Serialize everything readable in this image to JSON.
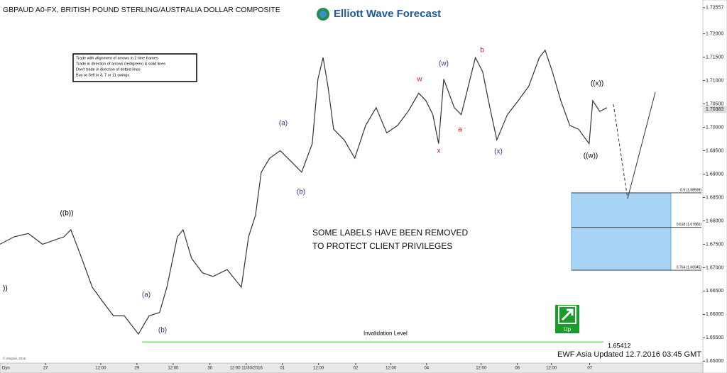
{
  "chart_data": {
    "type": "line",
    "title": "GBPAUD A0-FX, BRITISH POUND STERLING/AUSTRALIA DOLLAR COMPOSITE",
    "logo": "Elliott Wave Forecast",
    "rules": [
      "Trade with alignment of arrows in 2 time frames",
      "Trade in direction of arrows (red/green) & solid lines",
      "Don't trade in direction of dotted lines",
      "Buy or Sell in 3, 7 or 11 swings"
    ],
    "notice": [
      "SOME LABELS HAVE BEEN REMOVED",
      "TO PROTECT CLIENT PRIVILEGES"
    ],
    "footer": "EWF Asia Updated 12.7.2016 03:45 GMT",
    "copyright": "© eSignal, 2016",
    "interval_label": "Dyn",
    "signal": "Up",
    "invalidation": {
      "label": "Invalidation Level",
      "value": 1.65412,
      "color": "#33cc33"
    },
    "fib_levels": [
      {
        "label": "0.5 (1.68599)",
        "value": 1.68599
      },
      {
        "label": "0.618 (1.67860)",
        "value": 1.6786
      },
      {
        "label": "0.764 (1.66945)",
        "value": 1.66945
      }
    ],
    "last_price": {
      "value": 1.70383,
      "label": "1.70383"
    },
    "top_price": {
      "value": 1.72557,
      "label": "1.72557"
    },
    "wave_labels": [
      {
        "text": "))",
        "color": "#000000"
      },
      {
        "text": "((b))",
        "color": "#000000"
      },
      {
        "text": "(a)",
        "color": "#333399"
      },
      {
        "text": "(b)",
        "color": "#333399"
      },
      {
        "text": "(a)",
        "color": "#333399"
      },
      {
        "text": "(b)",
        "color": "#333399"
      },
      {
        "text": "w",
        "color": "#cc2222"
      },
      {
        "text": "x",
        "color": "#cc2222"
      },
      {
        "text": "(w)",
        "color": "#333399"
      },
      {
        "text": "a",
        "color": "#cc2222"
      },
      {
        "text": "b",
        "color": "#cc2222"
      },
      {
        "text": "(x)",
        "color": "#333399"
      },
      {
        "text": "((x))",
        "color": "#000000"
      },
      {
        "text": "((w))",
        "color": "#000000"
      }
    ],
    "xlim": [
      0,
      233
    ],
    "ylim": [
      1.6499,
      1.7257
    ],
    "xticks": [
      {
        "value": 15.1,
        "label": "27"
      },
      {
        "value": 33.4,
        "label": "12:00"
      },
      {
        "value": 45.4,
        "label": "29"
      },
      {
        "value": 57.4,
        "label": "12:00"
      },
      {
        "value": 69.6,
        "label": "30"
      },
      {
        "value": 81.6,
        "label": "12:00 11/30/2016"
      },
      {
        "value": 93.6,
        "label": "01"
      },
      {
        "value": 105.6,
        "label": "12:00"
      },
      {
        "value": 117.9,
        "label": "02"
      },
      {
        "value": 129.6,
        "label": "12:00"
      },
      {
        "value": 141.4,
        "label": "04"
      },
      {
        "value": 159.5,
        "label": "12:00"
      },
      {
        "value": 171.5,
        "label": "06"
      },
      {
        "value": 182.8,
        "label": "12:00"
      },
      {
        "value": 195.5,
        "label": "07"
      }
    ],
    "yticks": [
      {
        "value": 1.65,
        "label": "1.65000"
      },
      {
        "value": 1.655,
        "label": "1.65500"
      },
      {
        "value": 1.66,
        "label": "1.66000"
      },
      {
        "value": 1.665,
        "label": "1.66500"
      },
      {
        "value": 1.67,
        "label": "1.67000"
      },
      {
        "value": 1.675,
        "label": "1.67500"
      },
      {
        "value": 1.68,
        "label": "1.68000"
      },
      {
        "value": 1.685,
        "label": "1.68500"
      },
      {
        "value": 1.69,
        "label": "1.69000"
      },
      {
        "value": 1.695,
        "label": "1.69500"
      },
      {
        "value": 1.7,
        "label": "1.70000"
      },
      {
        "value": 1.705,
        "label": "1.70500"
      },
      {
        "value": 1.71,
        "label": "1.71000"
      },
      {
        "value": 1.715,
        "label": "1.71500"
      },
      {
        "value": 1.72,
        "label": "1.72000"
      }
    ],
    "x": [
      0,
      4.7,
      9.4,
      14.1,
      21.2,
      23.5,
      27.1,
      30.6,
      34.1,
      37.6,
      41.2,
      45.9,
      49.4,
      52.9,
      55.3,
      58.8,
      60.7,
      63.5,
      67.1,
      70.6,
      75.3,
      80,
      82.4,
      84.7,
      86.6,
      89.4,
      92.9,
      96.5,
      100,
      103.5,
      105.4,
      107.1,
      108.7,
      110.6,
      114.1,
      117.6,
      121.2,
      124.7,
      128.2,
      131.8,
      135.3,
      138.8,
      141.2,
      143.5,
      145.4,
      147.1,
      150.6,
      152.9,
      157.6,
      160,
      162.4,
      164.7,
      168.2,
      171.8,
      175.3,
      178.8,
      180.7,
      183.1,
      185.9,
      188.9,
      191.8,
      195.3,
      196.5,
      198.8,
      201.2
    ],
    "series": [
      {
        "name": "GBPAUD",
        "color": "#333333",
        "values": [
          1.675,
          1.6766,
          1.6773,
          1.675,
          1.6766,
          1.6781,
          1.672,
          1.6658,
          1.6627,
          1.6597,
          1.6597,
          1.6558,
          1.6597,
          1.6604,
          1.6658,
          1.6766,
          1.6781,
          1.672,
          1.6689,
          1.6681,
          1.6696,
          1.6658,
          1.6766,
          1.6812,
          1.6904,
          1.6934,
          1.695,
          1.6927,
          1.6904,
          1.6965,
          1.7103,
          1.7149,
          1.7088,
          1.6996,
          1.6973,
          1.6934,
          1.7004,
          1.7042,
          1.6988,
          1.7004,
          1.7034,
          1.7073,
          1.7057,
          1.7027,
          1.6965,
          1.7103,
          1.7042,
          1.7027,
          1.7149,
          1.7119,
          1.7042,
          1.6973,
          1.7027,
          1.7057,
          1.7088,
          1.7149,
          1.7165,
          1.7119,
          1.7057,
          1.7004,
          1.6996,
          1.6965,
          1.7057,
          1.7034,
          1.7042
        ]
      }
    ]
  }
}
